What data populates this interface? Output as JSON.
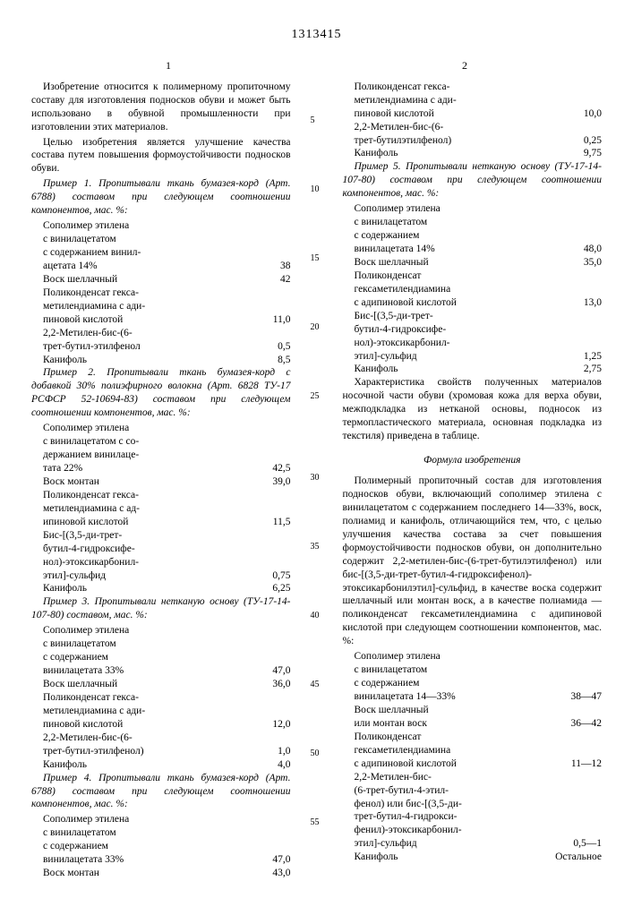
{
  "docnum": "1313415",
  "col1num": "1",
  "col2num": "2",
  "linenums": [
    "5",
    "10",
    "15",
    "20",
    "25",
    "30",
    "35",
    "40",
    "45",
    "50",
    "55"
  ],
  "col1": {
    "p1": "Изобретение относится к полимерному пропиточному составу для изготовления подносков обуви и может быть использовано в обувной промышленности при изготовлении этих материалов.",
    "p2": "Целью изобретения является улучшение качества состава путем повышения формоустойчивости подносков обуви.",
    "ex1": "Пример 1. Пропитывали ткань бумазея-корд (Арт. 6788) составом при следующем соотношении компонентов, мас. %:",
    "ex1_rows": [
      [
        "Сополимер этилена",
        ""
      ],
      [
        "с винилацетатом",
        ""
      ],
      [
        "с содержанием винил-",
        ""
      ],
      [
        "ацетата 14%",
        "38"
      ],
      [
        "Воск шеллачный",
        "42"
      ],
      [
        "Поликонденсат гекса-",
        ""
      ],
      [
        "метилендиамина с ади-",
        ""
      ],
      [
        "пиновой кислотой",
        "11,0"
      ],
      [
        "2,2-Метилен-бис-(6-",
        ""
      ],
      [
        "трет-бутил-этилфенол",
        "0,5"
      ],
      [
        "Канифоль",
        "8,5"
      ]
    ],
    "ex2": "Пример 2. Пропитывали ткань бумазея-корд с добавкой 30% полиэфирного волокна (Арт. 6828 ТУ-17 РСФСР 52-10694-83) составом при следующем соотношении компонентов, мас. %:",
    "ex2_rows": [
      [
        "Сополимер этилена",
        ""
      ],
      [
        "с винилацетатом с со-",
        ""
      ],
      [
        "держанием винилаце-",
        ""
      ],
      [
        "тата 22%",
        "42,5"
      ],
      [
        "Воск монтан",
        "39,0"
      ],
      [
        "Поликонденсат гекса-",
        ""
      ],
      [
        "метилендиамина с ад-",
        ""
      ],
      [
        "ипиновой кислотой",
        "11,5"
      ],
      [
        "Бис-[(3,5-ди-трет-",
        ""
      ],
      [
        "бутил-4-гидроксифе-",
        ""
      ],
      [
        "нол)-этоксикарбонил-",
        ""
      ],
      [
        "этил]-сульфид",
        "0,75"
      ],
      [
        "Канифоль",
        "6,25"
      ]
    ],
    "ex3": "Пример 3. Пропитывали нетканую основу (ТУ-17-14-107-80) составом, мас. %:",
    "ex3_rows": [
      [
        "Сополимер этилена",
        ""
      ],
      [
        "с винилацетатом",
        ""
      ],
      [
        "с содержанием",
        ""
      ],
      [
        "винилацетата 33%",
        "47,0"
      ],
      [
        "Воск шеллачный",
        "36,0"
      ],
      [
        "Поликонденсат гекса-",
        ""
      ],
      [
        "метилендиамина с ади-",
        ""
      ],
      [
        "пиновой кислотой",
        "12,0"
      ],
      [
        "2,2-Метилен-бис-(6-",
        ""
      ],
      [
        "трет-бутил-этилфенол)",
        "1,0"
      ],
      [
        "Канифоль",
        "4,0"
      ]
    ],
    "ex4": "Пример 4. Пропитывали ткань бумазея-корд (Арт. 6788) составом при следующем соотношении компонентов, мас. %:",
    "ex4_rows": [
      [
        "Сополимер этилена",
        ""
      ],
      [
        "с винилацетатом",
        ""
      ],
      [
        "с содержанием",
        ""
      ],
      [
        "винилацетата 33%",
        "47,0"
      ],
      [
        "Воск монтан",
        "43,0"
      ]
    ]
  },
  "col2": {
    "ex4_cont": [
      [
        "Поликонденсат гекса-",
        ""
      ],
      [
        "метилендиамина с ади-",
        ""
      ],
      [
        "пиновой кислотой",
        "10,0"
      ],
      [
        "2,2-Метилен-бис-(6-",
        ""
      ],
      [
        "трет-бутилэтилфенол)",
        "0,25"
      ],
      [
        "Канифоль",
        "9,75"
      ]
    ],
    "ex5": "Пример 5. Пропитывали нетканую основу (ТУ-17-14-107-80) составом при следующем соотношении компонентов, мас. %:",
    "ex5_rows": [
      [
        "Сополимер этилена",
        ""
      ],
      [
        "с винилацетатом",
        ""
      ],
      [
        "с содержанием",
        ""
      ],
      [
        "винилацетата 14%",
        "48,0"
      ],
      [
        "Воск шеллачный",
        "35,0"
      ],
      [
        "Поликонденсат",
        ""
      ],
      [
        "гексаметилендиамина",
        ""
      ],
      [
        "с адипиновой кислотой",
        "13,0"
      ],
      [
        "Бис-[(3,5-ди-трет-",
        ""
      ],
      [
        "бутил-4-гидроксифе-",
        ""
      ],
      [
        "нол)-этоксикарбонил-",
        ""
      ],
      [
        "этил]-сульфид",
        "1,25"
      ],
      [
        "Канифоль",
        "2,75"
      ]
    ],
    "char": "Характеристика свойств полученных материалов носочной части обуви (хромовая кожа для верха обуви, межподкладка из нетканой основы, подносок из термопластического материала, основная подкладка из текстиля) приведена в таблице.",
    "formula_title": "Формула изобретения",
    "formula": "Полимерный пропиточный состав для изготовления подносков обуви, включающий сополимер этилена с винилацетатом с содержанием последнего 14—33%, воск, полиамид и канифоль, отличающийся тем, что, с целью улучшения качества состава за счет повышения формоустойчивости подносков обуви, он дополнительно содержит 2,2-метилен-бис-(6-трет-бутилэтилфенол) или бис-[(3,5-ди-трет-бутил-4-гидроксифенол)-этоксикарбонилэтил]-сульфид, в качестве воска содержит шеллачный или монтан воск, а в качестве полиамида — поликонденсат гексаметилендиамина с адипиновой кислотой при следующем соотношении компонентов, мас. %:",
    "formula_rows": [
      [
        "Сополимер этилена",
        ""
      ],
      [
        "с винилацетатом",
        ""
      ],
      [
        "с содержанием",
        ""
      ],
      [
        "винилацетата 14—33%",
        "38—47"
      ],
      [
        "Воск шеллачный",
        ""
      ],
      [
        "или монтан воск",
        "36—42"
      ],
      [
        "Поликонденсат",
        ""
      ],
      [
        "гексаметилендиамина",
        ""
      ],
      [
        "с адипиновой кислотой",
        "11—12"
      ],
      [
        "2,2-Метилен-бис-",
        ""
      ],
      [
        "(6-трет-бутил-4-этил-",
        ""
      ],
      [
        "фенол) или бис-[(3,5-ди-",
        ""
      ],
      [
        "трет-бутил-4-гидрокси-",
        ""
      ],
      [
        "фенил)-этоксикарбонил-",
        ""
      ],
      [
        "этил]-сульфид",
        "0,5—1"
      ],
      [
        "Канифоль",
        "Остальное"
      ]
    ]
  }
}
